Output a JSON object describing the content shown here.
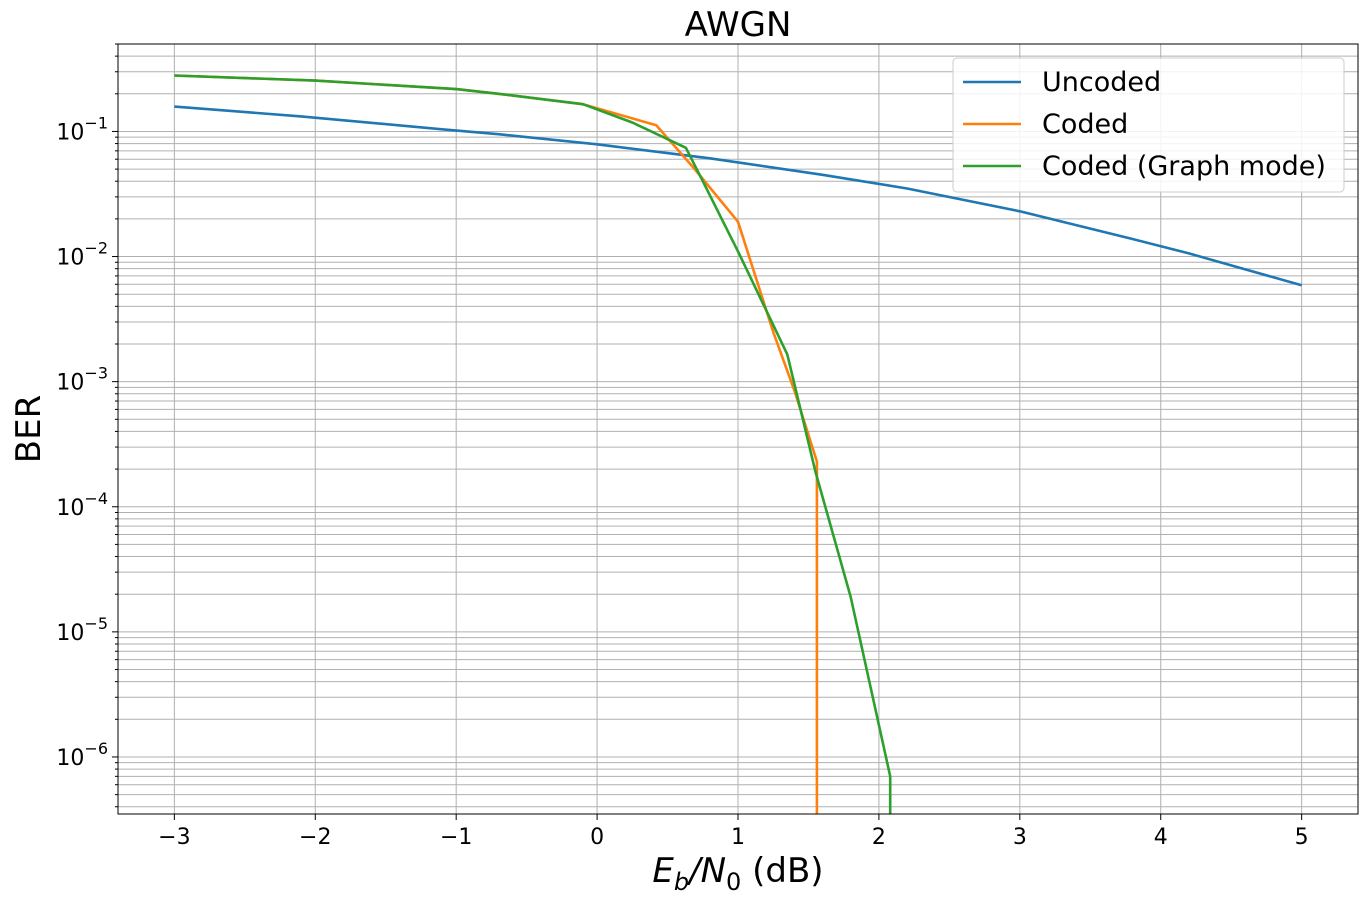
{
  "chart_data": {
    "type": "line",
    "title": "AWGN",
    "xlabel": {
      "main": "E",
      "sub1": "b",
      "slash": "/N",
      "sub2": "0",
      "unit": " (dB)"
    },
    "ylabel": "BER",
    "xlim": [
      -3.4,
      5.4
    ],
    "ylim": [
      3.5e-07,
      0.5
    ],
    "yscale": "log",
    "grid": true,
    "grid_minor": true,
    "legend_position": "top-right",
    "x_ticks": [
      -3,
      -2,
      -1,
      0,
      1,
      2,
      3,
      4,
      5
    ],
    "x_tick_labels": [
      "−3",
      "−2",
      "−1",
      "0",
      "1",
      "2",
      "3",
      "4",
      "5"
    ],
    "y_tick_exponents": [
      -6,
      -5,
      -4,
      -3,
      -2,
      -1
    ],
    "y_tick_base": "10",
    "y_tick_sup": [
      "−6",
      "−5",
      "−4",
      "−3",
      "−2",
      "−1"
    ],
    "series": [
      {
        "name": "Uncoded",
        "color": "#1f77b4",
        "x": [
          -3,
          -2.1,
          -1.1,
          -0.7,
          0,
          0.8,
          1.6,
          2.2,
          3,
          3.8,
          4.2,
          4.6,
          5
        ],
        "y": [
          0.158,
          0.132,
          0.104,
          0.095,
          0.079,
          0.061,
          0.045,
          0.035,
          0.023,
          0.0138,
          0.0106,
          0.0079,
          0.0059
        ]
      },
      {
        "name": "Coded",
        "color": "#ff7f0e",
        "x": [
          -3,
          -2,
          -1,
          -0.7,
          -0.1,
          0.42,
          0.68,
          1.0,
          1.25,
          1.4,
          1.56,
          1.56
        ],
        "y": [
          0.28,
          0.255,
          0.218,
          0.2,
          0.165,
          0.112,
          0.052,
          0.019,
          0.0025,
          0.00085,
          0.00023,
          3.5e-07
        ]
      },
      {
        "name": "Coded (Graph mode)",
        "color": "#2ca02c",
        "x": [
          -3,
          -2,
          -1,
          -0.7,
          -0.1,
          0.25,
          0.63,
          0.75,
          1.0,
          1.35,
          1.55,
          1.8,
          2.08,
          2.08
        ],
        "y": [
          0.28,
          0.255,
          0.218,
          0.2,
          0.165,
          0.118,
          0.074,
          0.04,
          0.011,
          0.00165,
          0.00019,
          1.9e-05,
          7e-07,
          3.5e-07
        ]
      }
    ]
  }
}
